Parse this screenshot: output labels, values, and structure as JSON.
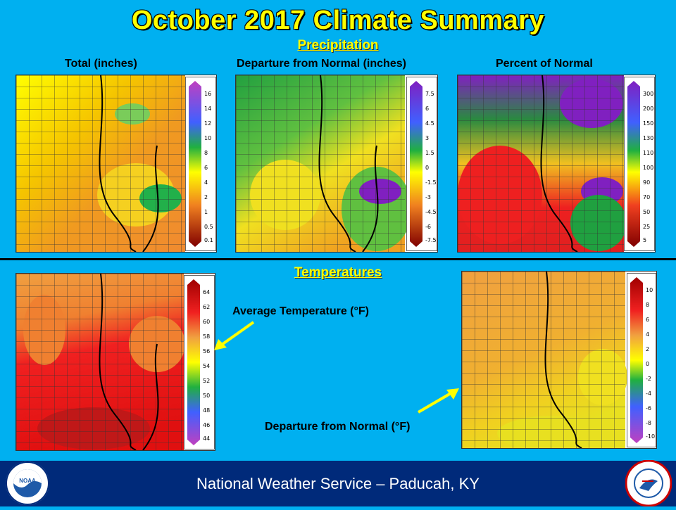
{
  "title": "October 2017 Climate Summary",
  "precip_section": "Precipitation",
  "temp_section": "Temperatures",
  "panels": {
    "total": {
      "label": "Total (inches)",
      "ticks": [
        "16",
        "14",
        "12",
        "10",
        "8",
        "6",
        "4",
        "2",
        "1",
        "0.5",
        "0.1"
      ]
    },
    "departure": {
      "label": "Departure  from Normal (inches)",
      "ticks": [
        "7.5",
        "6",
        "4.5",
        "3",
        "1.5",
        "0",
        "-1.5",
        "-3",
        "-4.5",
        "-6",
        "-7.5"
      ]
    },
    "percent": {
      "label": "Percent of Normal",
      "ticks": [
        "300",
        "200",
        "150",
        "130",
        "110",
        "100",
        "90",
        "70",
        "50",
        "25",
        "5"
      ]
    },
    "avg_temp": {
      "label": "Average Temperature  (°F)",
      "ticks": [
        "64",
        "62",
        "60",
        "58",
        "56",
        "54",
        "52",
        "50",
        "48",
        "46",
        "44"
      ]
    },
    "temp_departure": {
      "label": "Departure  from Normal (°F)",
      "ticks": [
        "10",
        "8",
        "6",
        "4",
        "2",
        "0",
        "-2",
        "-4",
        "-6",
        "-8",
        "-10"
      ]
    }
  },
  "footer": "National Weather Service – Paducah, KY",
  "logos": {
    "noaa": "NOAA",
    "nws": "NATIONAL WEATHER SERVICE"
  },
  "colors": {
    "background": "#00b0f0",
    "title": "#ffff00",
    "footer": "#002a7a"
  }
}
